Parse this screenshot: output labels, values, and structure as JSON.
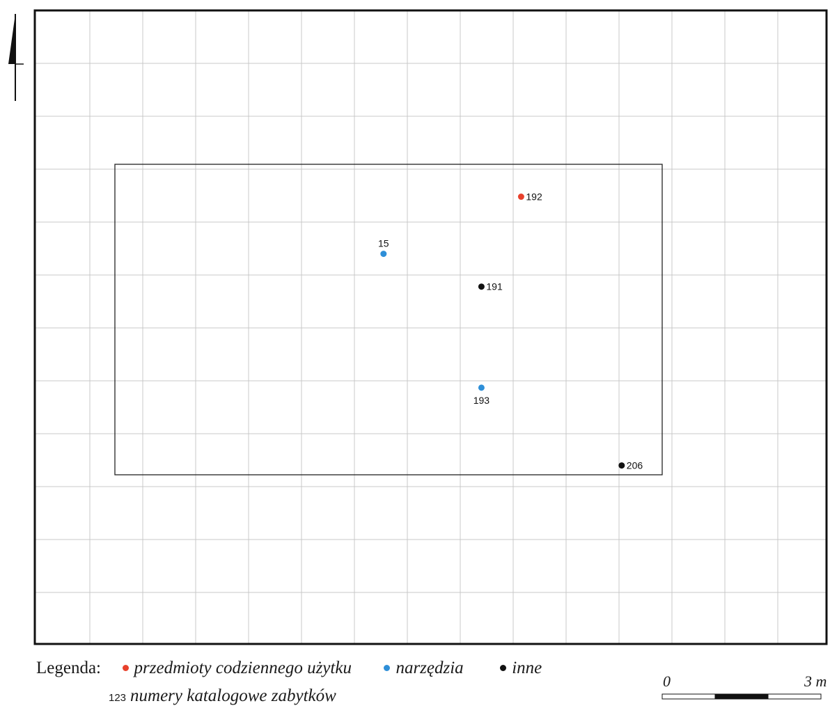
{
  "map": {
    "grid_columns": 15,
    "grid_rows": 12,
    "grid_color": "#c8c8c8",
    "frame_color": "#111111",
    "finds": [
      {
        "id": "192",
        "category": "codzienne",
        "col": 9.15,
        "row": 3.52,
        "label_side": "right"
      },
      {
        "id": "15",
        "category": "narzedzia",
        "col": 6.55,
        "row": 4.6,
        "label_side": "top"
      },
      {
        "id": "191",
        "category": "inne",
        "col": 8.4,
        "row": 5.22,
        "label_side": "right"
      },
      {
        "id": "193",
        "category": "narzedzia",
        "col": 8.4,
        "row": 7.13,
        "label_side": "bottom"
      },
      {
        "id": "206",
        "category": "inne",
        "col": 11.05,
        "row": 8.6,
        "label_side": "right"
      }
    ]
  },
  "legend": {
    "title": "Legenda:",
    "items": [
      {
        "key": "codzienne",
        "label": "przedmioty codziennego użytku",
        "color": "#e8412c"
      },
      {
        "key": "narzedzia",
        "label": "narzędzia",
        "color": "#2e8fd8"
      },
      {
        "key": "inne",
        "label": "inne",
        "color": "#111111"
      }
    ],
    "number_sample": "123",
    "number_label": "numery katalogowe zabytków"
  },
  "scale": {
    "start_label": "0",
    "end_label": "3 m"
  }
}
